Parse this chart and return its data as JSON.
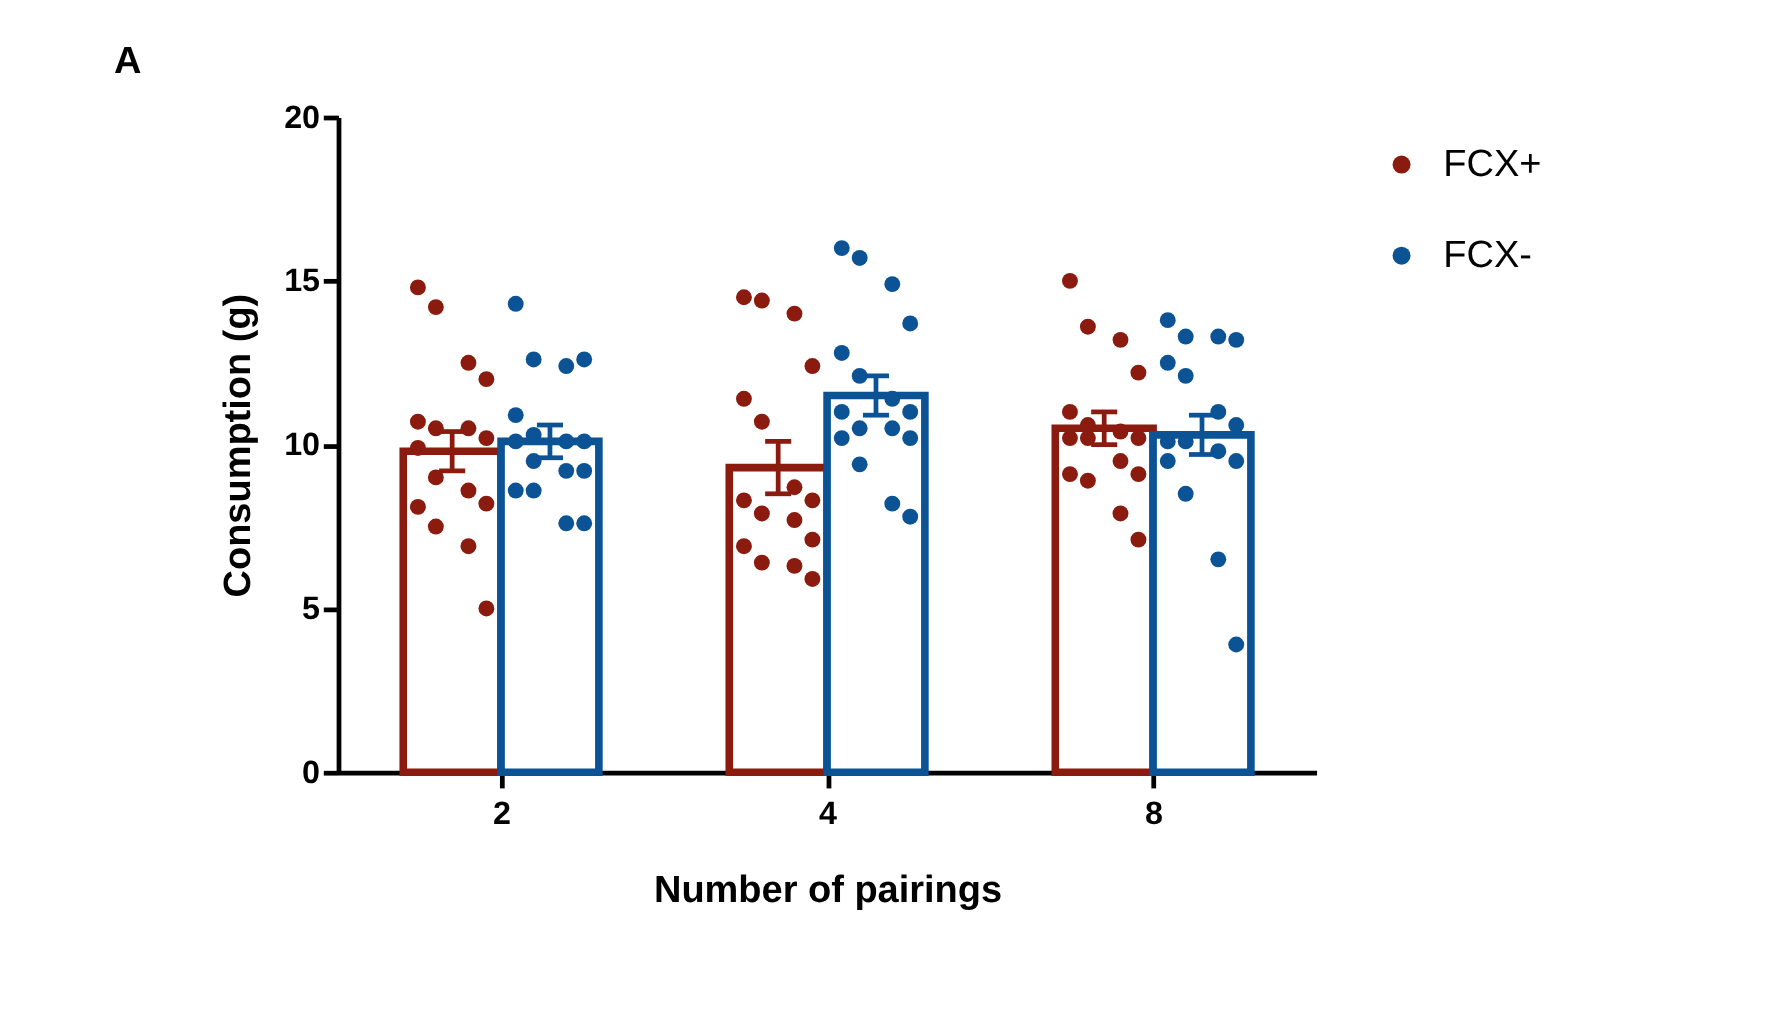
{
  "chart_data": {
    "type": "bar",
    "title": "A",
    "xlabel": "Number of pairings",
    "ylabel": "Consumption (g)",
    "categories": [
      "2",
      "4",
      "8"
    ],
    "ylim": [
      0,
      20
    ],
    "yticks": [
      0,
      5,
      10,
      15,
      20
    ],
    "grid": false,
    "legend": "top right",
    "series": [
      {
        "color": "#8b1a0f",
        "values": [
          9.8,
          9.3,
          10.5
        ],
        "errors": [
          0.6,
          0.8,
          0.5
        ]
      },
      {
        "color": "#0b5394",
        "values": [
          10.1,
          11.5,
          10.3
        ],
        "errors": [
          0.5,
          0.6,
          0.6
        ]
      },
      {
        "type": "scatter",
        "name": "FCX+",
        "color": "#8b1a0f",
        "marker": "circle",
        "x": [
          "2",
          "2",
          "2",
          "2",
          "2",
          "2",
          "2",
          "2",
          "2",
          "2",
          "2",
          "2",
          "2",
          "2",
          "2",
          "2",
          "4",
          "4",
          "4",
          "4",
          "4",
          "4",
          "4",
          "4",
          "4",
          "4",
          "4",
          "4",
          "4",
          "4",
          "4",
          "4",
          "8",
          "8",
          "8",
          "8",
          "8",
          "8",
          "8",
          "8",
          "8",
          "8",
          "8",
          "8",
          "8",
          "8",
          "8",
          "8"
        ],
        "values": [
          14.8,
          14.2,
          12.5,
          12.0,
          10.7,
          10.5,
          10.5,
          10.2,
          9.9,
          9.0,
          8.6,
          8.2,
          8.1,
          7.5,
          6.9,
          5.0,
          14.5,
          14.4,
          14.0,
          12.4,
          11.4,
          10.7,
          8.7,
          8.3,
          8.3,
          7.9,
          7.7,
          7.1,
          6.9,
          6.4,
          6.3,
          5.9,
          15.0,
          13.6,
          13.2,
          12.2,
          11.0,
          10.6,
          10.4,
          10.2,
          10.2,
          10.2,
          9.5,
          9.1,
          9.1,
          8.9,
          7.9,
          7.1
        ]
      },
      {
        "type": "scatter",
        "name": "FCX-",
        "color": "#0b5394",
        "marker": "circle",
        "x": [
          "2",
          "2",
          "2",
          "2",
          "2",
          "2",
          "2",
          "2",
          "2",
          "2",
          "2",
          "2",
          "2",
          "2",
          "2",
          "2",
          "4",
          "4",
          "4",
          "4",
          "4",
          "4",
          "4",
          "4",
          "4",
          "4",
          "4",
          "4",
          "4",
          "4",
          "4",
          "4",
          "8",
          "8",
          "8",
          "8",
          "8",
          "8",
          "8",
          "8",
          "8",
          "8",
          "8",
          "8",
          "8",
          "8",
          "8",
          "8"
        ],
        "values": [
          14.3,
          12.6,
          12.4,
          12.6,
          10.9,
          10.3,
          10.1,
          10.1,
          10.1,
          9.5,
          9.2,
          9.2,
          8.6,
          8.6,
          7.6,
          7.6,
          16.0,
          15.7,
          14.9,
          13.7,
          12.8,
          12.1,
          11.4,
          11.0,
          11.0,
          10.5,
          10.5,
          10.2,
          10.2,
          9.4,
          8.2,
          7.8,
          13.8,
          13.3,
          13.3,
          13.2,
          12.5,
          12.1,
          11.0,
          10.6,
          10.1,
          10.1,
          9.8,
          9.5,
          9.5,
          8.5,
          6.5,
          3.9
        ]
      }
    ]
  }
}
